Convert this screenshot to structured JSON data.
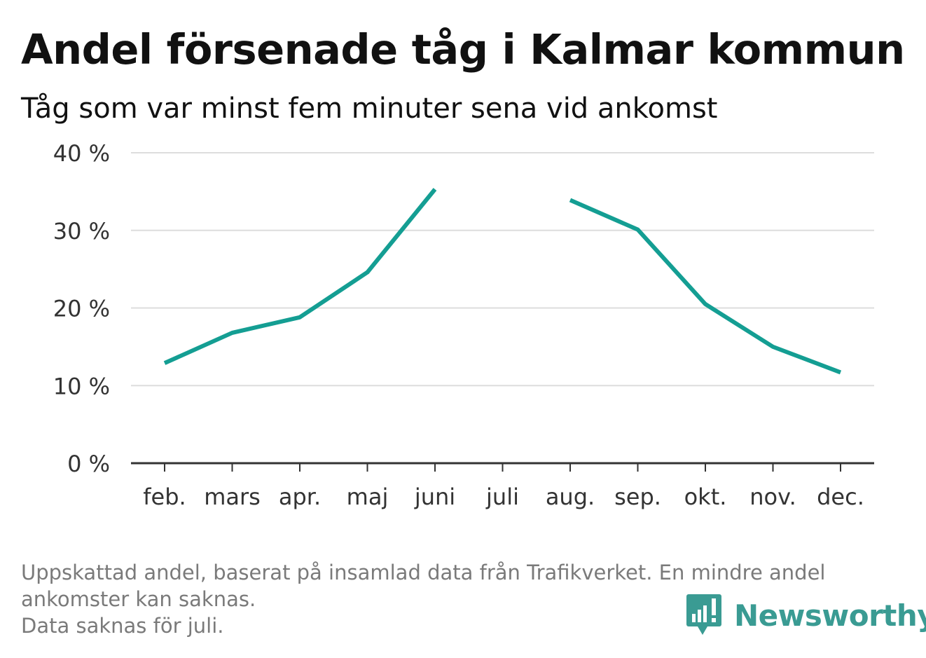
{
  "header": {
    "title": "Andel försenade tåg i Kalmar kommun",
    "subtitle": "Tåg som var minst fem minuter sena vid ankomst"
  },
  "chart_data": {
    "type": "line",
    "categories": [
      "feb.",
      "mars",
      "apr.",
      "maj",
      "juni",
      "juli",
      "aug.",
      "sep.",
      "okt.",
      "nov.",
      "dec."
    ],
    "series": [
      {
        "values": [
          12.9,
          16.8,
          18.8,
          24.6,
          35.3,
          null,
          33.9,
          30.1,
          20.5,
          15.0,
          11.7
        ]
      }
    ],
    "yticks": [
      "0 %",
      "10 %",
      "20 %",
      "30 %",
      "40 %"
    ],
    "ylim": [
      0,
      40
    ],
    "grid": true,
    "color": "#149e93",
    "legend": "none"
  },
  "footer": {
    "note_lines": [
      "Uppskattad andel, baserat på insamlad data från Trafikverket. En mindre andel",
      "ankomster kan saknas.",
      "Data saknas för juli."
    ],
    "brand": "Newsworthy",
    "brand_color": "#3a9b93"
  }
}
